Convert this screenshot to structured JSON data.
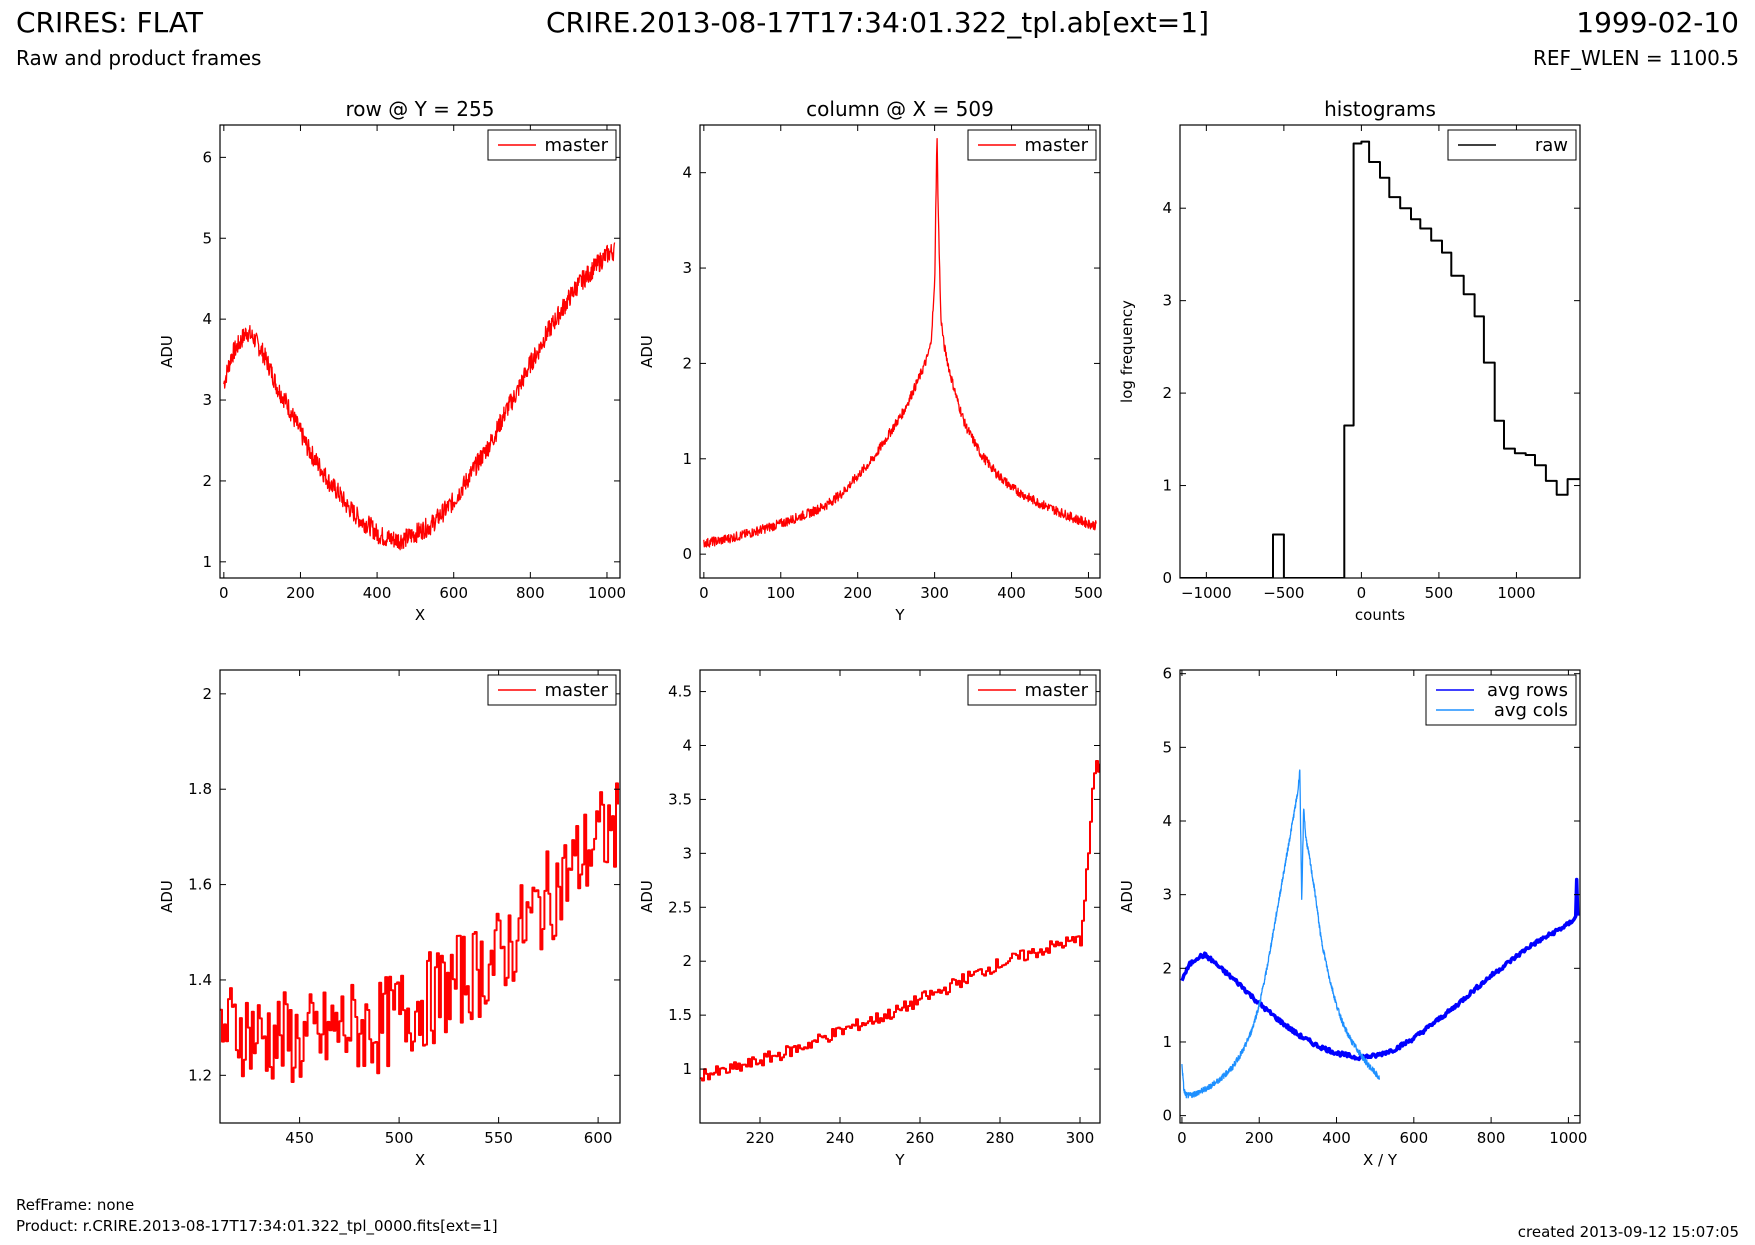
{
  "header": {
    "title_left": "CRIRES: FLAT",
    "subtitle_left": "Raw and product frames",
    "title_center": "CRIRE.2013-08-17T17:34:01.322_tpl.ab[ext=1]",
    "title_right": "1999-02-10",
    "subtitle_right": "REF_WLEN = 1100.5"
  },
  "footer": {
    "refframe": "RefFrame: none",
    "product": "Product: r.CRIRE.2013-08-17T17:34:01.322_tpl_0000.fits[ext=1]",
    "created": "created 2013-09-12 15:07:05"
  },
  "chart_data": [
    {
      "type": "line",
      "title": "row @ Y = 255",
      "xlabel": "X",
      "ylabel": "ADU",
      "xlim": [
        -10,
        1034
      ],
      "ylim": [
        0.8,
        6.4
      ],
      "xticks": [
        0,
        200,
        400,
        600,
        800,
        1000
      ],
      "yticks": [
        1,
        2,
        3,
        4,
        5,
        6
      ],
      "legend": "top-right",
      "series": [
        {
          "name": "master",
          "color": "#ff0000",
          "style": "line",
          "x": [
            0,
            20,
            40,
            60,
            80,
            100,
            120,
            140,
            160,
            180,
            200,
            220,
            240,
            260,
            280,
            300,
            320,
            340,
            360,
            380,
            400,
            420,
            440,
            460,
            480,
            500,
            520,
            540,
            560,
            580,
            600,
            620,
            640,
            660,
            680,
            700,
            720,
            740,
            760,
            780,
            800,
            820,
            840,
            860,
            880,
            900,
            920,
            940,
            960,
            980,
            1000,
            1020
          ],
          "y": [
            3.2,
            3.55,
            3.7,
            3.85,
            3.75,
            3.6,
            3.4,
            3.15,
            3.0,
            2.8,
            2.6,
            2.4,
            2.25,
            2.1,
            1.95,
            1.85,
            1.7,
            1.6,
            1.5,
            1.45,
            1.35,
            1.3,
            1.28,
            1.27,
            1.3,
            1.35,
            1.4,
            1.45,
            1.55,
            1.65,
            1.75,
            1.9,
            2.05,
            2.2,
            2.35,
            2.5,
            2.7,
            2.9,
            3.05,
            3.25,
            3.45,
            3.6,
            3.8,
            3.95,
            4.1,
            4.25,
            4.4,
            4.5,
            4.6,
            4.7,
            4.8,
            4.85
          ],
          "noise": 0.12
        }
      ]
    },
    {
      "type": "line",
      "title": "column @ X = 509",
      "xlabel": "Y",
      "ylabel": "ADU",
      "xlim": [
        -5,
        515
      ],
      "ylim": [
        -0.25,
        4.5
      ],
      "xticks": [
        0,
        100,
        200,
        300,
        400,
        500
      ],
      "yticks": [
        0,
        1,
        2,
        3,
        4
      ],
      "legend": "top-right",
      "series": [
        {
          "name": "master",
          "color": "#ff0000",
          "style": "line",
          "x": [
            0,
            5,
            10,
            20,
            30,
            40,
            50,
            60,
            80,
            100,
            120,
            140,
            160,
            180,
            200,
            220,
            240,
            260,
            280,
            290,
            295,
            300,
            303,
            305,
            308,
            312,
            320,
            330,
            340,
            360,
            380,
            400,
            420,
            440,
            460,
            480,
            500,
            510
          ],
          "y": [
            0.12,
            0.12,
            0.13,
            0.14,
            0.16,
            0.18,
            0.2,
            0.22,
            0.27,
            0.32,
            0.38,
            0.44,
            0.52,
            0.64,
            0.82,
            1.0,
            1.25,
            1.5,
            1.85,
            2.05,
            2.2,
            2.8,
            4.4,
            3.5,
            2.5,
            2.2,
            1.9,
            1.6,
            1.35,
            1.05,
            0.85,
            0.7,
            0.6,
            0.52,
            0.45,
            0.38,
            0.32,
            0.3
          ],
          "noise": 0.05
        }
      ]
    },
    {
      "type": "line",
      "title": "histograms",
      "xlabel": "counts",
      "ylabel": "log frequency",
      "xlim": [
        -1170,
        1410
      ],
      "ylim": [
        0,
        4.9
      ],
      "xticks": [
        -1000,
        -500,
        0,
        500,
        1000
      ],
      "yticks": [
        0,
        1,
        2,
        3,
        4
      ],
      "legend": "top-right",
      "series": [
        {
          "name": "raw",
          "color": "#000000",
          "style": "step",
          "x": [
            -1170,
            -570,
            -500,
            -110,
            -50,
            0,
            50,
            120,
            180,
            250,
            320,
            380,
            450,
            520,
            580,
            660,
            730,
            790,
            860,
            920,
            990,
            1060,
            1120,
            1190,
            1260,
            1330,
            1410
          ],
          "y": [
            0,
            0.47,
            0,
            1.65,
            4.7,
            4.72,
            4.5,
            4.33,
            4.12,
            4.0,
            3.88,
            3.78,
            3.65,
            3.52,
            3.27,
            3.07,
            2.83,
            2.33,
            1.7,
            1.4,
            1.35,
            1.33,
            1.22,
            1.05,
            0.9,
            1.07,
            1.07
          ]
        }
      ]
    },
    {
      "type": "line",
      "title": "",
      "xlabel": "X",
      "ylabel": "ADU",
      "xlim": [
        410,
        611
      ],
      "ylim": [
        1.1,
        2.05
      ],
      "xticks": [
        450,
        500,
        550,
        600
      ],
      "yticks": [
        1.2,
        1.4,
        1.6,
        1.8,
        2.0
      ],
      "legend": "top-right",
      "series": [
        {
          "name": "master",
          "color": "#ff0000",
          "style": "step",
          "x": [
            410,
            420,
            430,
            440,
            450,
            460,
            470,
            480,
            490,
            500,
            510,
            520,
            530,
            540,
            550,
            560,
            570,
            580,
            590,
            600,
            610
          ],
          "y": [
            1.3,
            1.3,
            1.28,
            1.28,
            1.27,
            1.28,
            1.3,
            1.3,
            1.3,
            1.33,
            1.35,
            1.37,
            1.4,
            1.42,
            1.45,
            1.5,
            1.55,
            1.6,
            1.65,
            1.7,
            1.72
          ],
          "noise": 0.1
        }
      ]
    },
    {
      "type": "line",
      "title": "",
      "xlabel": "Y",
      "ylabel": "ADU",
      "xlim": [
        205,
        305
      ],
      "ylim": [
        0.5,
        4.7
      ],
      "xticks": [
        220,
        240,
        260,
        280,
        300
      ],
      "yticks": [
        1.0,
        1.5,
        2.0,
        2.5,
        3.0,
        3.5,
        4.0,
        4.5
      ],
      "legend": "top-right",
      "series": [
        {
          "name": "master",
          "color": "#ff0000",
          "style": "step",
          "x": [
            205,
            210,
            215,
            220,
            225,
            230,
            235,
            240,
            245,
            250,
            255,
            260,
            265,
            270,
            275,
            280,
            285,
            290,
            295,
            300,
            301,
            302,
            303,
            304,
            305
          ],
          "y": [
            0.95,
            0.97,
            1.02,
            1.08,
            1.14,
            1.2,
            1.28,
            1.35,
            1.42,
            1.48,
            1.55,
            1.65,
            1.72,
            1.82,
            1.9,
            1.98,
            2.04,
            2.1,
            2.16,
            2.2,
            2.6,
            3.0,
            3.6,
            3.8,
            3.8
          ],
          "noise": 0.06
        }
      ]
    },
    {
      "type": "line",
      "title": "",
      "xlabel": "X / Y",
      "ylabel": "ADU",
      "xlim": [
        -5,
        1030
      ],
      "ylim": [
        -0.1,
        6.05
      ],
      "xticks": [
        0,
        200,
        400,
        600,
        800,
        1000
      ],
      "yticks": [
        0,
        1,
        2,
        3,
        4,
        5,
        6
      ],
      "legend": "top-right",
      "series": [
        {
          "name": "avg rows",
          "color": "#0000ff",
          "style": "thick",
          "x": [
            0,
            20,
            40,
            60,
            80,
            100,
            150,
            200,
            250,
            300,
            350,
            400,
            450,
            500,
            550,
            600,
            650,
            700,
            750,
            800,
            850,
            900,
            950,
            1000,
            1020,
            1022,
            1024
          ],
          "y": [
            1.85,
            2.05,
            2.15,
            2.18,
            2.1,
            2.0,
            1.78,
            1.52,
            1.3,
            1.1,
            0.95,
            0.85,
            0.79,
            0.81,
            0.9,
            1.05,
            1.25,
            1.45,
            1.68,
            1.9,
            2.1,
            2.3,
            2.45,
            2.6,
            2.7,
            3.4,
            2.7
          ],
          "noise": 0.03
        },
        {
          "name": "avg cols",
          "color": "#1e90ff",
          "style": "line",
          "x": [
            0,
            5,
            10,
            20,
            50,
            80,
            100,
            130,
            160,
            180,
            200,
            220,
            240,
            260,
            280,
            290,
            300,
            305,
            310,
            315,
            320,
            330,
            345,
            360,
            380,
            400,
            420,
            440,
            460,
            480,
            500,
            511
          ],
          "y": [
            0.7,
            0.35,
            0.28,
            0.27,
            0.33,
            0.42,
            0.5,
            0.65,
            0.9,
            1.15,
            1.5,
            2.0,
            2.6,
            3.2,
            3.8,
            4.1,
            4.4,
            4.7,
            2.9,
            4.2,
            3.8,
            3.5,
            3.0,
            2.4,
            1.9,
            1.5,
            1.2,
            1.0,
            0.85,
            0.7,
            0.58,
            0.5
          ],
          "noise": 0.04
        }
      ]
    }
  ]
}
